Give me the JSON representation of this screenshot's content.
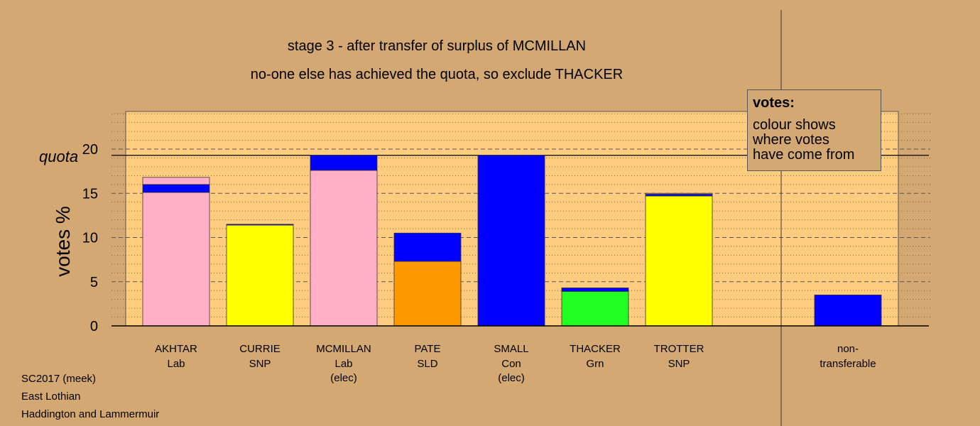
{
  "titles": {
    "line1": "stage 3 - after transfer of surplus of MCMILLAN",
    "line2": "no-one else has achieved the quota, so exclude THACKER"
  },
  "legend": {
    "heading": "votes:",
    "text": "colour shows\nwhere votes\nhave come from"
  },
  "footer": {
    "line1": "SC2017 (meek)",
    "line2": "East Lothian",
    "line3": "Haddington and Lammermuir"
  },
  "colors": {
    "background": "#d4a873",
    "plot_area": "#ffcc80",
    "Lab": "#ffb0c8",
    "SNP": "#ffff00",
    "SLD": "#ff9900",
    "Con": "#0000ff",
    "Grn": "#22ff22"
  },
  "chart_data": {
    "type": "bar",
    "stacked": true,
    "ylabel": "votes %",
    "ylim": [
      0,
      25
    ],
    "yticks": [
      0,
      5,
      10,
      15,
      20
    ],
    "quota": 19.3,
    "quota_label": "quota",
    "grid": "dotted minor lines every 1%, dashed major lines every 5%",
    "candidates": [
      {
        "name": "AKHTAR",
        "party": "Lab",
        "note": "",
        "segments": [
          {
            "from": "Lab",
            "value": 15.1
          },
          {
            "from": "Con",
            "value": 0.9
          },
          {
            "from": "Lab",
            "value": 0.8
          }
        ]
      },
      {
        "name": "CURRIE",
        "party": "SNP",
        "note": "",
        "segments": [
          {
            "from": "SNP",
            "value": 11.4
          },
          {
            "from": "Con",
            "value": 0.1
          }
        ]
      },
      {
        "name": "MCMILLAN",
        "party": "Lab",
        "note": "(elec)",
        "segments": [
          {
            "from": "Lab",
            "value": 17.6
          },
          {
            "from": "Con",
            "value": 1.7
          }
        ]
      },
      {
        "name": "PATE",
        "party": "SLD",
        "note": "",
        "segments": [
          {
            "from": "SLD",
            "value": 7.3
          },
          {
            "from": "Con",
            "value": 3.2
          }
        ]
      },
      {
        "name": "SMALL",
        "party": "Con",
        "note": "(elec)",
        "segments": [
          {
            "from": "Con",
            "value": 19.3
          }
        ]
      },
      {
        "name": "THACKER",
        "party": "Grn",
        "note": "",
        "segments": [
          {
            "from": "Grn",
            "value": 3.9
          },
          {
            "from": "Con",
            "value": 0.4
          }
        ]
      },
      {
        "name": "TROTTER",
        "party": "SNP",
        "note": "",
        "segments": [
          {
            "from": "SNP",
            "value": 14.7
          },
          {
            "from": "Con",
            "value": 0.2
          },
          {
            "from": "Lab",
            "value": 0.1
          }
        ]
      }
    ],
    "nontransferable": {
      "label_line1": "non-",
      "label_line2": "transferable",
      "segments": [
        {
          "from": "Con",
          "value": 3.5
        }
      ]
    }
  }
}
